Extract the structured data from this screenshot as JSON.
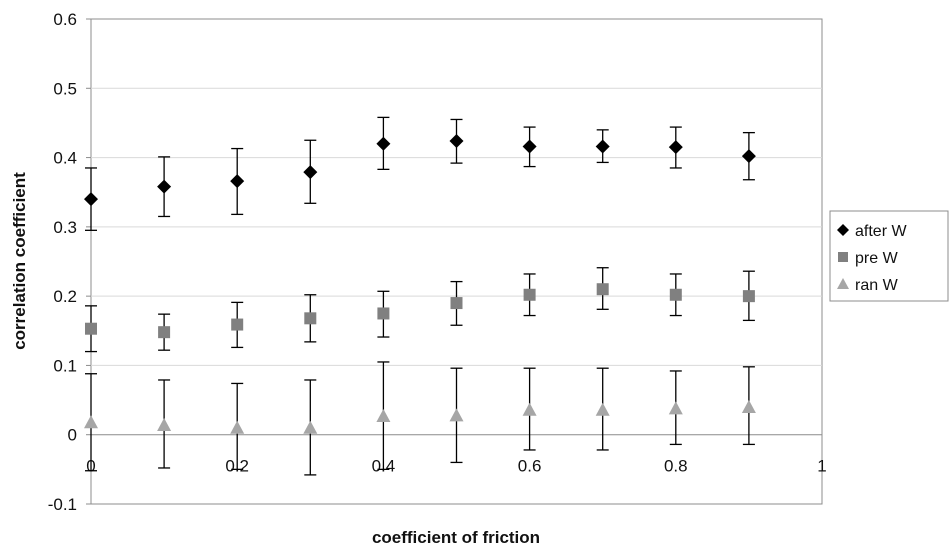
{
  "chart_data": {
    "type": "scatter",
    "title": "",
    "xlabel": "coefficient of friction",
    "ylabel": "correlation coefficient",
    "xlim": [
      0,
      1
    ],
    "ylim": [
      -0.1,
      0.6
    ],
    "xticks": [
      "0",
      "0.2",
      "0.4",
      "0.6",
      "0.8",
      "1"
    ],
    "xtick_values": [
      0,
      0.2,
      0.4,
      0.6,
      0.8,
      1
    ],
    "yticks": [
      "-0.1",
      "0",
      "0.1",
      "0.2",
      "0.3",
      "0.4",
      "0.5",
      "0.6"
    ],
    "ytick_values": [
      -0.1,
      0,
      0.1,
      0.2,
      0.3,
      0.4,
      0.5,
      0.6
    ],
    "grid": "horizontal",
    "legend": "right",
    "x": [
      0,
      0.1,
      0.2,
      0.3,
      0.4,
      0.5,
      0.6,
      0.7,
      0.8,
      0.9
    ],
    "series": [
      {
        "name": "after W",
        "marker": "diamond",
        "color": "#000000",
        "values": [
          0.34,
          0.358,
          0.366,
          0.379,
          0.42,
          0.424,
          0.416,
          0.416,
          0.415,
          0.402
        ],
        "err_low": [
          0.295,
          0.315,
          0.318,
          0.334,
          0.383,
          0.392,
          0.387,
          0.393,
          0.385,
          0.368
        ],
        "err_high": [
          0.385,
          0.401,
          0.413,
          0.425,
          0.458,
          0.455,
          0.444,
          0.44,
          0.444,
          0.436
        ]
      },
      {
        "name": "pre W",
        "marker": "square",
        "color": "#808080",
        "values": [
          0.153,
          0.148,
          0.159,
          0.168,
          0.175,
          0.19,
          0.202,
          0.21,
          0.202,
          0.2
        ],
        "err_low": [
          0.12,
          0.122,
          0.126,
          0.134,
          0.141,
          0.158,
          0.172,
          0.181,
          0.172,
          0.165
        ],
        "err_high": [
          0.186,
          0.174,
          0.191,
          0.202,
          0.207,
          0.221,
          0.232,
          0.241,
          0.232,
          0.236
        ]
      },
      {
        "name": "ran W",
        "marker": "triangle",
        "color": "#a6a6a6",
        "values": [
          0.018,
          0.014,
          0.01,
          0.01,
          0.027,
          0.028,
          0.036,
          0.036,
          0.038,
          0.04
        ],
        "err_low": [
          -0.052,
          -0.048,
          -0.05,
          -0.058,
          -0.05,
          -0.04,
          -0.022,
          -0.022,
          -0.014,
          -0.014
        ],
        "err_high": [
          0.088,
          0.079,
          0.074,
          0.079,
          0.105,
          0.096,
          0.096,
          0.096,
          0.092,
          0.098
        ]
      }
    ]
  }
}
